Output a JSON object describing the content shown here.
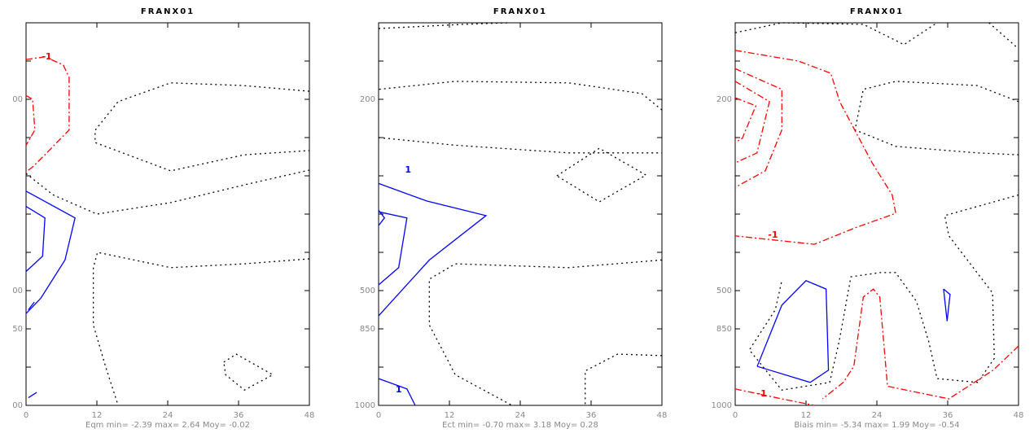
{
  "chart_data": [
    {
      "type": "contour",
      "title": "FRANX01",
      "caption": "Eqm min=  -2.39 max=   2.64 Moy=  -0.02",
      "xlim": [
        0,
        48
      ],
      "xticks": [
        0,
        12,
        24,
        36,
        48
      ],
      "y_levels": [
        null,
        null,
        "00",
        null,
        null,
        null,
        null,
        "00",
        "50",
        null,
        "00"
      ],
      "contours": [
        {
          "color": "#ff0000",
          "style": "dashdot",
          "points": [
            [
              0,
              0.96
            ],
            [
              3.2,
              0.89
            ],
            [
              6.3,
              1.1
            ],
            [
              7.3,
              1.43
            ],
            [
              7.3,
              2.8
            ],
            [
              3.2,
              3.45
            ],
            [
              1.1,
              3.77
            ],
            [
              0,
              3.9
            ]
          ]
        },
        {
          "color": "#ff0000",
          "style": "dashdot",
          "points": [
            [
              0,
              1.9
            ],
            [
              1.1,
              2.0
            ],
            [
              1.5,
              2.8
            ],
            [
              0,
              3.2
            ]
          ]
        },
        {
          "color": "#000000",
          "style": "dotted",
          "points": [
            [
              48,
              1.79
            ],
            [
              36.8,
              1.64
            ],
            [
              24.5,
              1.57
            ],
            [
              15.6,
              2.06
            ],
            [
              11.7,
              2.81
            ],
            [
              11.7,
              3.13
            ],
            [
              24.5,
              3.87
            ],
            [
              37,
              3.45
            ],
            [
              48,
              3.34
            ]
          ]
        },
        {
          "color": "#000000",
          "style": "dotted",
          "points": [
            [
              0,
              3.94
            ],
            [
              4.6,
              4.5
            ],
            [
              12,
              5.0
            ],
            [
              24.5,
              4.7
            ],
            [
              38,
              4.2
            ],
            [
              48,
              3.85
            ]
          ]
        },
        {
          "color": "#000000",
          "style": "dotted",
          "points": [
            [
              48,
              6.17
            ],
            [
              37,
              6.3
            ],
            [
              24.5,
              6.4
            ],
            [
              12.1,
              6.0
            ],
            [
              11.4,
              6.4
            ],
            [
              11.4,
              7.9
            ],
            [
              13.5,
              9.0
            ],
            [
              15.6,
              10
            ]
          ]
        },
        {
          "color": "#000000",
          "style": "dotted",
          "points": [
            [
              33.5,
              8.87
            ],
            [
              35.6,
              8.66
            ],
            [
              41.8,
              9.2
            ],
            [
              37,
              9.6
            ],
            [
              33.8,
              9.2
            ],
            [
              33.5,
              8.87
            ]
          ]
        },
        {
          "color": "#0000ff",
          "style": "solid",
          "points": [
            [
              0,
              4.4
            ],
            [
              8.3,
              5.1
            ],
            [
              6.6,
              6.2
            ],
            [
              2.5,
              7.2
            ],
            [
              0,
              7.6
            ]
          ]
        },
        {
          "color": "#0000ff",
          "style": "solid",
          "points": [
            [
              0,
              4.8
            ],
            [
              3.2,
              5.1
            ],
            [
              2.8,
              6.1
            ],
            [
              0,
              6.5
            ]
          ]
        },
        {
          "color": "#0000ff",
          "style": "solid",
          "points": [
            [
              0.4,
              7.5
            ],
            [
              1.4,
              7.3
            ]
          ]
        },
        {
          "color": "#0000ff",
          "style": "solid",
          "points": [
            [
              0.4,
              9.8
            ],
            [
              1.8,
              9.66
            ]
          ]
        }
      ],
      "contour_labels": [
        {
          "text": "-1",
          "color": "#ff0000",
          "at": [
            3.5,
            0.89
          ]
        }
      ]
    },
    {
      "type": "contour",
      "title": "FRANX01",
      "caption": "Ect min=  -0.70 max=   3.18 Moy=   0.28",
      "xlim": [
        0,
        48
      ],
      "xticks": [
        0,
        12,
        24,
        36,
        48
      ],
      "y_levels": [
        null,
        null,
        "200",
        null,
        null,
        null,
        null,
        "500",
        "850",
        null,
        "1000"
      ],
      "contours": [
        {
          "color": "#000000",
          "style": "dotted",
          "points": [
            [
              0,
              0.15
            ],
            [
              14.4,
              0.04
            ],
            [
              22,
              0
            ]
          ]
        },
        {
          "color": "#000000",
          "style": "dotted",
          "points": [
            [
              48,
              2.28
            ],
            [
              44.6,
              1.85
            ],
            [
              32.2,
              1.57
            ],
            [
              13,
              1.53
            ],
            [
              0,
              1.74
            ]
          ]
        },
        {
          "color": "#000000",
          "style": "dotted",
          "points": [
            [
              0,
              3.0
            ],
            [
              13,
              3.2
            ],
            [
              32.2,
              3.4
            ],
            [
              48,
              3.4
            ]
          ]
        },
        {
          "color": "#000000",
          "style": "dotted",
          "points": [
            [
              30.2,
              4.0
            ],
            [
              37.4,
              3.28
            ],
            [
              45.3,
              3.98
            ],
            [
              37.4,
              4.68
            ],
            [
              30.2,
              4.0
            ]
          ]
        },
        {
          "color": "#000000",
          "style": "dotted",
          "points": [
            [
              48,
              6.2
            ],
            [
              32.2,
              6.4
            ],
            [
              13,
              6.3
            ],
            [
              8.6,
              6.7
            ],
            [
              8.6,
              7.9
            ],
            [
              13,
              9.2
            ],
            [
              22.6,
              10
            ]
          ]
        },
        {
          "color": "#000000",
          "style": "dotted",
          "points": [
            [
              48,
              8.7
            ],
            [
              40.5,
              8.66
            ],
            [
              35,
              9.1
            ],
            [
              35,
              10
            ]
          ]
        },
        {
          "color": "#0000ff",
          "style": "solid",
          "points": [
            [
              0,
              4.2
            ],
            [
              8.2,
              4.66
            ],
            [
              18.2,
              5.04
            ],
            [
              8.6,
              6.2
            ],
            [
              0,
              7.66
            ]
          ]
        },
        {
          "color": "#0000ff",
          "style": "solid",
          "points": [
            [
              0,
              4.94
            ],
            [
              4.8,
              5.1
            ],
            [
              3.4,
              6.4
            ],
            [
              0,
              6.85
            ]
          ]
        },
        {
          "color": "#0000ff",
          "style": "solid",
          "points": [
            [
              0,
              4.9
            ],
            [
              1,
              5.1
            ],
            [
              0,
              5.3
            ]
          ]
        },
        {
          "color": "#0000ff",
          "style": "solid",
          "points": [
            [
              0,
              9.3
            ],
            [
              4.8,
              9.57
            ],
            [
              6.2,
              10
            ]
          ]
        }
      ],
      "contour_labels": [
        {
          "text": "1",
          "color": "#0000ff",
          "at": [
            5,
            3.85
          ]
        },
        {
          "text": "1",
          "color": "#0000ff",
          "at": [
            3.4,
            9.6
          ]
        }
      ]
    },
    {
      "type": "contour",
      "title": "FRANX01",
      "caption": "Biais min=  -5.34 max=   1.99 Moy=  -0.54",
      "xlim": [
        0,
        48
      ],
      "xticks": [
        0,
        12,
        24,
        36,
        48
      ],
      "y_levels": [
        null,
        null,
        "200",
        null,
        null,
        null,
        null,
        "500",
        "850",
        null,
        "1000"
      ],
      "contours": [
        {
          "color": "#000000",
          "style": "dotted",
          "points": [
            [
              0,
              0.26
            ],
            [
              7.9,
              0
            ],
            [
              21.7,
              0.04
            ],
            [
              28.6,
              0.57
            ],
            [
              34.2,
              0
            ]
          ]
        },
        {
          "color": "#000000",
          "style": "dotted",
          "points": [
            [
              43,
              0
            ],
            [
              48,
              0.68
            ]
          ]
        },
        {
          "color": "#000000",
          "style": "dotted",
          "points": [
            [
              48,
              2.06
            ],
            [
              41,
              1.64
            ],
            [
              27.2,
              1.53
            ],
            [
              21.7,
              1.74
            ],
            [
              20.3,
              2.8
            ],
            [
              27.2,
              3.23
            ],
            [
              41,
              3.4
            ],
            [
              48,
              3.45
            ]
          ]
        },
        {
          "color": "#000000",
          "style": "dotted",
          "points": [
            [
              48,
              4.5
            ],
            [
              35.5,
              5.04
            ],
            [
              36.2,
              5.57
            ],
            [
              43.6,
              7.06
            ],
            [
              43.9,
              8.77
            ],
            [
              41.1,
              9.4
            ],
            [
              34.2,
              9.3
            ],
            [
              32.8,
              8.34
            ],
            [
              30.7,
              7.28
            ],
            [
              27.2,
              6.53
            ],
            [
              24.5,
              6.53
            ],
            [
              19.6,
              6.64
            ],
            [
              17.6,
              8.34
            ],
            [
              16,
              9.4
            ],
            [
              7.9,
              9.6
            ],
            [
              2.4,
              8.55
            ],
            [
              6.8,
              7.5
            ],
            [
              7.9,
              6.74
            ]
          ]
        },
        {
          "color": "#ff0000",
          "style": "dashdot",
          "points": [
            [
              0,
              0.72
            ],
            [
              10.7,
              1.0
            ],
            [
              16.2,
              1.32
            ],
            [
              17.7,
              2.06
            ],
            [
              23.2,
              3.66
            ],
            [
              26.6,
              4.5
            ],
            [
              27.2,
              4.98
            ],
            [
              20.3,
              5.36
            ],
            [
              13.4,
              5.79
            ],
            [
              0,
              5.57
            ]
          ]
        },
        {
          "color": "#ff0000",
          "style": "dashdot",
          "points": [
            [
              0,
              1.2
            ],
            [
              7.9,
              1.74
            ],
            [
              7.9,
              2.8
            ],
            [
              5.1,
              3.87
            ],
            [
              0,
              4.3
            ]
          ]
        },
        {
          "color": "#ff0000",
          "style": "dashdot",
          "points": [
            [
              0,
              1.53
            ],
            [
              5.8,
              2.06
            ],
            [
              3.7,
              3.4
            ],
            [
              0,
              3.66
            ]
          ]
        },
        {
          "color": "#ff0000",
          "style": "dashdot",
          "points": [
            [
              0,
              1.96
            ],
            [
              3.5,
              2.17
            ],
            [
              1.2,
              3.02
            ],
            [
              0,
              3.13
            ]
          ]
        },
        {
          "color": "#ff0000",
          "style": "dashdot",
          "points": [
            [
              48,
              8.45
            ],
            [
              43.7,
              9.08
            ],
            [
              36.2,
              9.83
            ],
            [
              25.8,
              9.5
            ],
            [
              24.5,
              7.17
            ],
            [
              23.4,
              6.96
            ],
            [
              21.7,
              7.17
            ],
            [
              20.1,
              8.98
            ],
            [
              18.3,
              9.4
            ],
            [
              14.8,
              9.83
            ]
          ]
        },
        {
          "color": "#ff0000",
          "style": "dashdot",
          "points": [
            [
              0,
              9.57
            ],
            [
              7.9,
              9.83
            ],
            [
              13.4,
              10
            ]
          ]
        },
        {
          "color": "#0000ff",
          "style": "solid",
          "points": [
            [
              3.73,
              8.98
            ],
            [
              7.9,
              7.38
            ],
            [
              12,
              6.74
            ],
            [
              15.4,
              6.96
            ],
            [
              15.8,
              9.08
            ],
            [
              12.7,
              9.4
            ],
            [
              3.73,
              8.98
            ]
          ]
        },
        {
          "color": "#0000ff",
          "style": "solid",
          "points": [
            [
              35.3,
              6.96
            ],
            [
              36.4,
              7.1
            ],
            [
              35.9,
              7.8
            ],
            [
              35.3,
              6.96
            ]
          ]
        }
      ],
      "contour_labels": [
        {
          "text": "-1",
          "color": "#ff0000",
          "at": [
            6.4,
            5.55
          ]
        },
        {
          "text": "-1",
          "color": "#ff0000",
          "at": [
            4.5,
            9.7
          ]
        }
      ]
    }
  ]
}
